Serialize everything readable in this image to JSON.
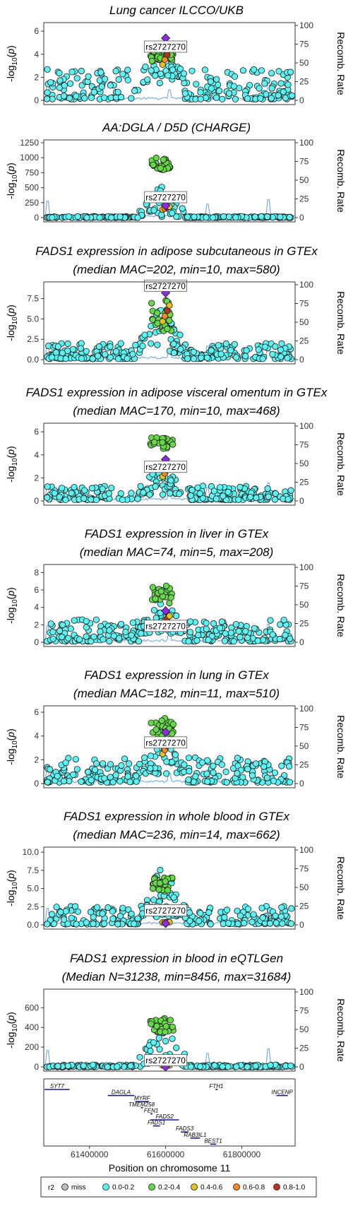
{
  "chart_data": {
    "type": "scatter",
    "xlabel": "Position on chromosome 11",
    "xlim": [
      61280000,
      61940000
    ],
    "xticks": [
      "61400000",
      "61600000",
      "61800000"
    ],
    "xtick_values": [
      61400000,
      61600000,
      61800000
    ],
    "recomb_label": "Recomb. Rate",
    "recomb_ticks": [
      "0",
      "25",
      "50",
      "75",
      "100"
    ],
    "lead_snp": {
      "label": "rs2727270",
      "pos": 61600000
    },
    "panels": [
      {
        "title1": "Lung cancer ILCCO/UKB",
        "title2": "",
        "ymax": 6.5,
        "yticks": [
          "0",
          "2",
          "4",
          "6"
        ],
        "ytick_values": [
          0,
          2,
          4,
          6
        ],
        "lead_value": 5.4,
        "bg_min": 0.1,
        "bg_max": 2.7,
        "peak_min": 1.5,
        "peak_max": 5.0,
        "high_cluster": {
          "min": 3.2,
          "max": 4.3,
          "r2": "0.2-0.4"
        },
        "lead_label_value": 4.6
      },
      {
        "title1": "AA:DGLA / D5D (CHARGE)",
        "title2": "",
        "ymax": 1250,
        "yticks": [
          "0",
          "250",
          "500",
          "750",
          "1000",
          "1250"
        ],
        "ytick_values": [
          0,
          250,
          500,
          750,
          1000,
          1250
        ],
        "lead_value": 200,
        "bg_min": 0,
        "bg_max": 20,
        "peak_min": 0,
        "peak_max": 560,
        "high_cluster": {
          "min": 800,
          "max": 1000,
          "r2": "0.2-0.4"
        },
        "lead_label_value": 330
      },
      {
        "title1": "FADS1 expression in adipose subcutaneous in GTEx",
        "title2": "(median MAC=202, min=10, max=580)",
        "ymax": 9.2,
        "yticks": [
          "0.0",
          "2.5",
          "5.0",
          "7.5"
        ],
        "ytick_values": [
          0,
          2.5,
          5,
          7.5
        ],
        "lead_value": 8.2,
        "bg_min": 0.1,
        "bg_max": 2.0,
        "peak_min": 0.8,
        "peak_max": 6.5,
        "high_cluster": {
          "min": 3.5,
          "max": 7.3,
          "r2": "0.2-0.4"
        },
        "lead_label_value": 9.0
      },
      {
        "title1": "FADS1 expression in adipose visceral omentum in GTEx",
        "title2": "(median MAC=170, min=10, max=468)",
        "ymax": 6.5,
        "yticks": [
          "0",
          "2",
          "4",
          "6"
        ],
        "ytick_values": [
          0,
          2,
          4,
          6
        ],
        "lead_value": 3.6,
        "bg_min": 0.1,
        "bg_max": 1.3,
        "peak_min": 0.5,
        "peak_max": 3.2,
        "high_cluster": {
          "min": 4.5,
          "max": 5.5,
          "r2": "0.2-0.4"
        },
        "lead_label_value": 2.9
      },
      {
        "title1": "FADS1 expression in liver in GTEx",
        "title2": "(median MAC=74, min=5, max=208)",
        "ymax": 8.6,
        "yticks": [
          "0",
          "2",
          "4",
          "6",
          "8"
        ],
        "ytick_values": [
          0,
          2,
          4,
          6,
          8
        ],
        "lead_value": 3.6,
        "bg_min": 0.1,
        "bg_max": 2.6,
        "peak_min": 1.0,
        "peak_max": 5.0,
        "high_cluster": {
          "min": 4.5,
          "max": 6.5,
          "r2": "0.2-0.4"
        },
        "lead_label_value": 1.8
      },
      {
        "title1": "FADS1 expression in lung in GTEx",
        "title2": "(median MAC=182, min=11, max=510)",
        "ymax": 6.3,
        "yticks": [
          "0",
          "2",
          "4",
          "6"
        ],
        "ytick_values": [
          0,
          2,
          4,
          6
        ],
        "lead_value": 4.3,
        "bg_min": 0.1,
        "bg_max": 2.2,
        "peak_min": 0.8,
        "peak_max": 4.0,
        "high_cluster": {
          "min": 4.0,
          "max": 5.5,
          "r2": "0.2-0.4"
        },
        "lead_label_value": 3.4
      },
      {
        "title1": "FADS1 expression in whole blood in GTEx",
        "title2": "(median MAC=236, min=14, max=662)",
        "ymax": 10.3,
        "yticks": [
          "0.0",
          "2.5",
          "5.0",
          "7.5",
          "10.0"
        ],
        "ytick_values": [
          0,
          2.5,
          5,
          7.5,
          10
        ],
        "lead_value": 0.2,
        "bg_min": 0.1,
        "bg_max": 2.6,
        "peak_min": 1.0,
        "peak_max": 8.0,
        "high_cluster": {
          "min": 4.5,
          "max": 6.5,
          "r2": "0.2-0.4"
        },
        "lead_label_value": 1.9
      },
      {
        "title1": "FADS1 expression in blood in eQTLGen",
        "title2": "(Median N=31238, min=8456, max=31684)",
        "ymax": 760,
        "yticks": [
          "0",
          "200",
          "400",
          "600"
        ],
        "ytick_values": [
          0,
          200,
          400,
          600
        ],
        "lead_value": 0,
        "bg_min": 0,
        "bg_max": 20,
        "peak_min": 0,
        "peak_max": 520,
        "high_cluster": {
          "min": 350,
          "max": 500,
          "r2": "0.2-0.4"
        },
        "lead_label_value": 60
      }
    ],
    "genes": [
      {
        "name": "SYT7",
        "start": 61282000,
        "end": 61348000,
        "row": 0
      },
      {
        "name": "DAGLA",
        "start": 61448000,
        "end": 61518000,
        "row": 1
      },
      {
        "name": "FTH1",
        "start": 61731000,
        "end": 61735000,
        "row": 0
      },
      {
        "name": "INCENP",
        "start": 61891000,
        "end": 61921000,
        "row": 1
      },
      {
        "name": "MYRF",
        "start": 61520000,
        "end": 61556000,
        "row": 2
      },
      {
        "name": "TMEM258",
        "start": 61535000,
        "end": 61539000,
        "row": 3
      },
      {
        "name": "FEN1",
        "start": 61560000,
        "end": 61564000,
        "row": 4
      },
      {
        "name": "FADS2",
        "start": 61560000,
        "end": 61635000,
        "row": 5
      },
      {
        "name": "FADS1",
        "start": 61567000,
        "end": 61585000,
        "row": 6
      },
      {
        "name": "FADS3",
        "start": 61640000,
        "end": 61660000,
        "row": 7
      },
      {
        "name": "RAB3IL1",
        "start": 61665000,
        "end": 61690000,
        "row": 8
      },
      {
        "name": "BEST1",
        "start": 61717000,
        "end": 61733000,
        "row": 9
      }
    ],
    "legend": {
      "title": "r2",
      "entries": [
        {
          "label": "miss",
          "color": "#bdbdbd"
        },
        {
          "label": "0.0-0.2",
          "color": "#5ff2f2"
        },
        {
          "label": "0.2-0.4",
          "color": "#66d94a"
        },
        {
          "label": "0.4-0.6",
          "color": "#e6c21a"
        },
        {
          "label": "0.6-0.8",
          "color": "#f08a2a"
        },
        {
          "label": "0.8-1.0",
          "color": "#b8321e"
        }
      ]
    },
    "lead_color": "#8b2be2",
    "recomb_color": "#5b9bd5"
  }
}
